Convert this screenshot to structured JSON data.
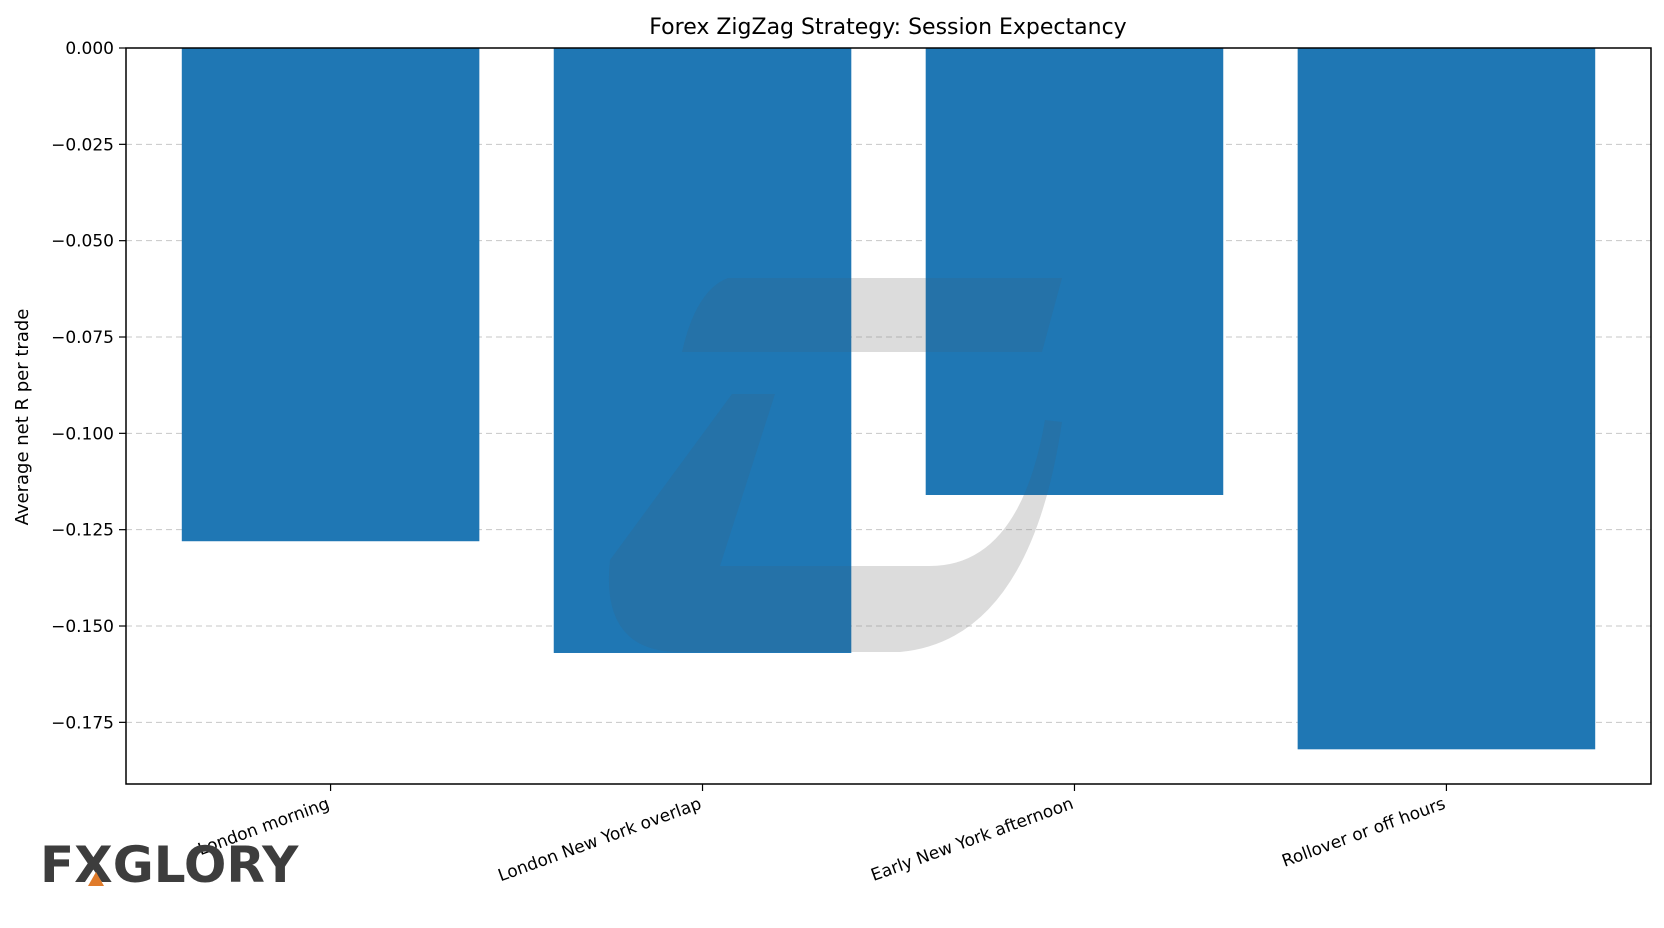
{
  "chart_data": {
    "type": "bar",
    "title": "Forex ZigZag Strategy: Session Expectancy",
    "xlabel": "",
    "ylabel": "Average net R per trade",
    "categories": [
      "London morning",
      "London New York overlap",
      "Early New York afternoon",
      "Rollover or off hours"
    ],
    "values": [
      -0.128,
      -0.157,
      -0.116,
      -0.182
    ],
    "ylim": [
      -0.191,
      0.0
    ],
    "yticks": [
      0.0,
      -0.025,
      -0.05,
      -0.075,
      -0.1,
      -0.125,
      -0.15,
      -0.175
    ],
    "ytick_labels": [
      "0.000",
      "−0.025",
      "−0.050",
      "−0.075",
      "−0.100",
      "−0.125",
      "−0.150",
      "−0.175"
    ],
    "grid": "horizontal-dashed",
    "legend": "none",
    "bar_color": "#1f77b4"
  },
  "logo": {
    "text_part1": "FX",
    "text_part2": "GLORY",
    "color": "#3d3d3d",
    "accent_color": "#e07b2a"
  },
  "watermark": {
    "color": "#e6e6e6"
  }
}
